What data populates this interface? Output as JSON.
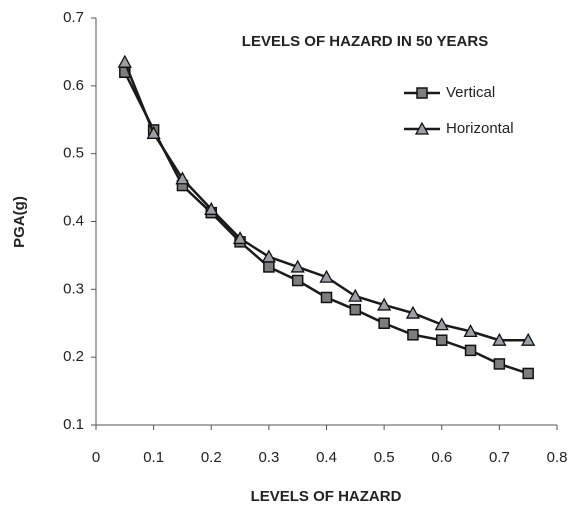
{
  "chart_data": {
    "type": "line",
    "title": "LEVELS OF HAZARD IN 50 YEARS",
    "x_label": "LEVELS OF HAZARD",
    "y_label": "PGA(g)",
    "x": [
      0.05,
      0.1,
      0.15,
      0.2,
      0.25,
      0.3,
      0.35,
      0.4,
      0.45,
      0.5,
      0.55,
      0.6,
      0.65,
      0.7,
      0.75
    ],
    "series": [
      {
        "name": "Vertical",
        "color": "#1a1a1a",
        "marker": "square",
        "values": [
          0.62,
          0.535,
          0.453,
          0.413,
          0.37,
          0.333,
          0.313,
          0.288,
          0.27,
          0.25,
          0.233,
          0.225,
          0.21,
          0.19,
          0.176
        ]
      },
      {
        "name": "Horizontal",
        "color": "#1a1a1a",
        "marker": "triangle",
        "values": [
          0.635,
          0.53,
          0.463,
          0.418,
          0.375,
          0.348,
          0.333,
          0.318,
          0.29,
          0.277,
          0.265,
          0.248,
          0.238,
          0.225,
          0.225
        ]
      }
    ],
    "xlim": [
      0,
      0.8
    ],
    "xticks": [
      0,
      0.1,
      0.2,
      0.3,
      0.4,
      0.5,
      0.6,
      0.7,
      0.8
    ],
    "ylim": [
      0.1,
      0.7
    ],
    "yticks": [
      0.1,
      0.2,
      0.3,
      0.4,
      0.5,
      0.6,
      0.7
    ],
    "legend": "upper-right",
    "grid": false
  }
}
